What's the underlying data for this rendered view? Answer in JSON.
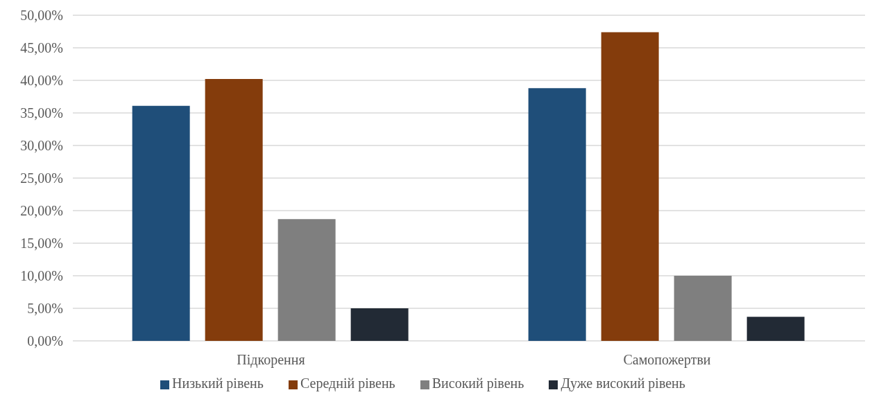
{
  "chart_data": {
    "type": "bar",
    "categories": [
      "Підкорення",
      "Самопожертви"
    ],
    "series": [
      {
        "name": "Низький рівень",
        "color": "#1f4e79",
        "values": [
          36.1,
          38.8
        ]
      },
      {
        "name": "Середній рівень",
        "color": "#843c0c",
        "values": [
          40.2,
          47.4
        ]
      },
      {
        "name": "Високий рівень",
        "color": "#7f7f7f",
        "values": [
          18.7,
          10.0
        ]
      },
      {
        "name": "Дуже високий рівень",
        "color": "#222a35",
        "values": [
          5.0,
          3.7
        ]
      }
    ],
    "ylim": [
      0,
      50
    ],
    "yticks": [
      {
        "value": 0,
        "label": "0,00%"
      },
      {
        "value": 5,
        "label": "5,00%"
      },
      {
        "value": 10,
        "label": "10,00%"
      },
      {
        "value": 15,
        "label": "15,00%"
      },
      {
        "value": 20,
        "label": "20,00%"
      },
      {
        "value": 25,
        "label": "25,00%"
      },
      {
        "value": 30,
        "label": "30,00%"
      },
      {
        "value": 35,
        "label": "35,00%"
      },
      {
        "value": 40,
        "label": "40,00%"
      },
      {
        "value": 45,
        "label": "45,00%"
      },
      {
        "value": 50,
        "label": "50,00%"
      }
    ],
    "grid": "y",
    "legend": "bottom"
  }
}
